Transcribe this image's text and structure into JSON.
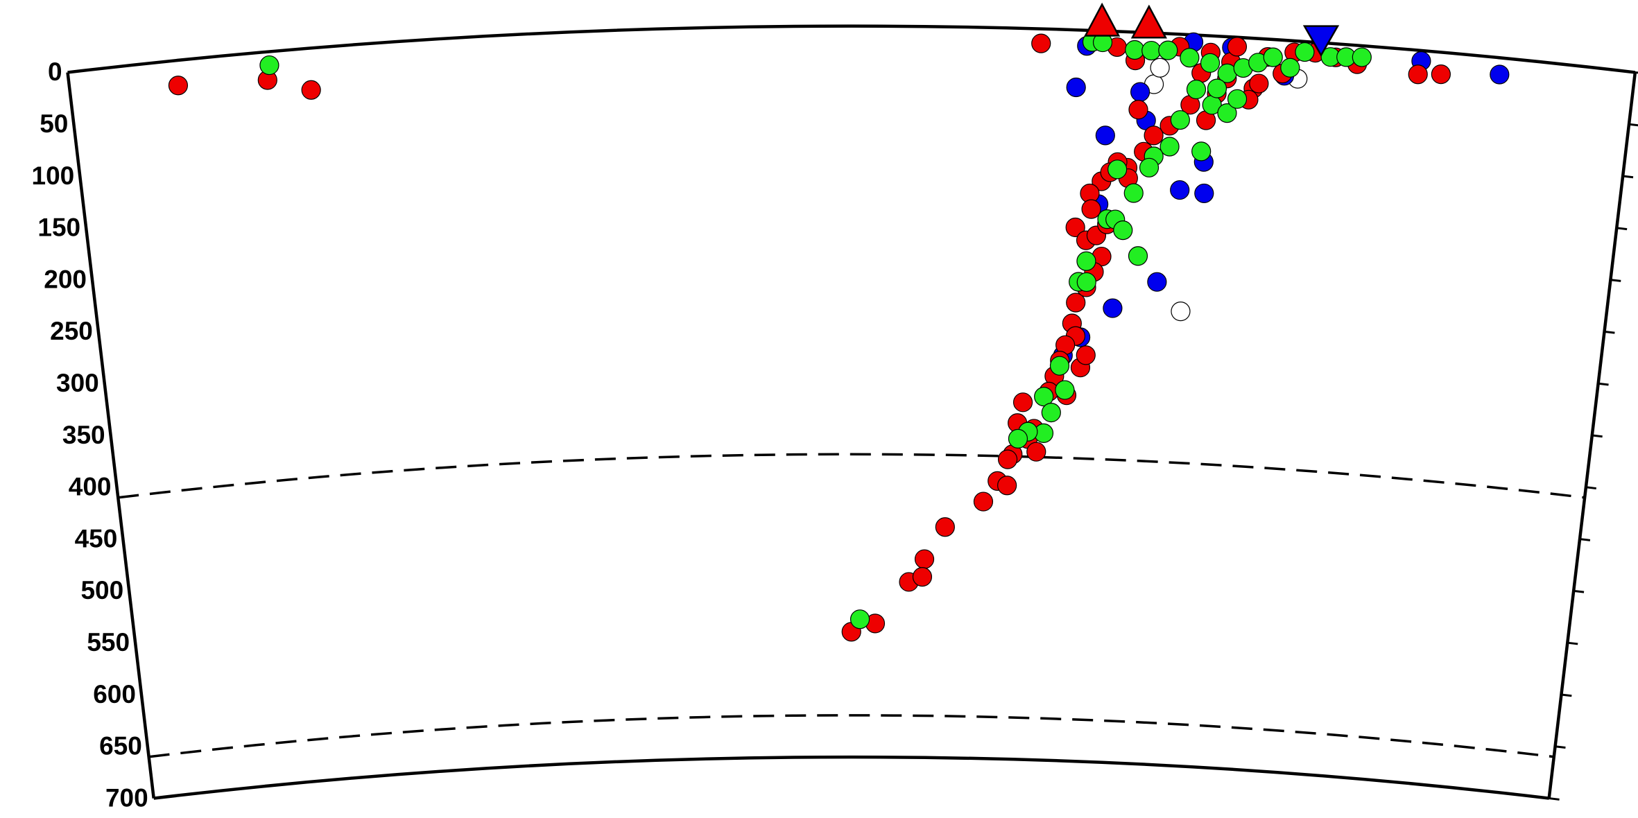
{
  "chart_data": {
    "type": "section",
    "ylim": [
      0,
      700
    ],
    "yticks": [
      0,
      50,
      100,
      150,
      200,
      250,
      300,
      350,
      400,
      450,
      500,
      550,
      600,
      650,
      700
    ],
    "y_inverted": true,
    "xlim": [
      -752,
      752
    ],
    "discontinuities": [
      410,
      660
    ],
    "series": [
      {
        "color": "#ffffff",
        "x": [
          329,
          430,
          292,
          297
        ],
        "values": [
          265,
          36,
          49,
          33
        ]
      },
      {
        "color": "#0000ee",
        "x": [
          547,
          623,
          217,
          247,
          279,
          346,
          322,
          304,
          261,
          344,
          226,
          328,
          365,
          417,
          286,
          230,
          213,
          243
        ],
        "values": [
          10,
          16,
          55,
          100,
          57,
          151,
          149,
          238,
          265,
          121,
          15,
          7,
          10,
          34,
          84,
          294,
          312,
          166
        ]
      },
      {
        "color": "#ee0000",
        "x": [
          -648,
          -562,
          -521,
          182,
          545,
          567,
          486,
          255,
          273,
          315,
          345,
          365,
          388,
          400,
          425,
          445,
          362,
          337,
          344,
          328,
          309,
          294,
          285,
          270,
          278,
          260,
          245,
          253,
          271,
          234,
          221,
          236,
          232,
          242,
          252,
          248,
          241,
          224,
          234,
          221,
          225,
          215,
          210,
          231,
          205,
          200,
          218,
          236,
          174,
          169,
          186,
          180,
          165,
          189,
          160,
          150,
          160,
          136,
          97,
          76,
          60,
          74,
          25,
          0,
          370,
          393,
          415,
          465,
          384,
          353
        ],
        "values": [
          24,
          27,
          40,
          14,
          23,
          21,
          18,
          15,
          27,
          12,
          16,
          24,
          48,
          17,
          11,
          10,
          40,
          36,
          81,
          67,
          88,
          98,
          114,
          130,
          74,
          125,
          144,
          135,
          140,
          156,
          189,
          171,
          201,
          196,
          185,
          216,
          231,
          261,
          246,
          281,
          293,
          302,
          317,
          323,
          332,
          347,
          350,
          311,
          358,
          378,
          383,
          393,
          408,
          405,
          413,
          434,
          438,
          454,
          479,
          510,
          532,
          527,
          572,
          580,
          9,
          43,
          32,
          13,
          59,
          55
        ]
      },
      {
        "color": "#22ee22",
        "x": [
          -559,
          231,
          241,
          272,
          288,
          304,
          325,
          345,
          362,
          377,
          391,
          405,
          422,
          435,
          460,
          475,
          490,
          333,
          349,
          364,
          319,
          341,
          310,
          295,
          291,
          277,
          260,
          252,
          260,
          268,
          284,
          233,
          226,
          234,
          210,
          195,
          216,
          203,
          196,
          180,
          170,
          9,
          353,
          373
        ],
        "values": [
          13,
          11,
          11,
          17,
          17,
          16,
          22,
          26,
          35,
          29,
          23,
          17,
          26,
          10,
          13,
          12,
          11,
          52,
          66,
          73,
          82,
          111,
          108,
          118,
          129,
          154,
          132,
          180,
          180,
          190,
          214,
          221,
          241,
          241,
          322,
          352,
          345,
          367,
          387,
          386,
          393,
          568,
          50,
          59
        ]
      }
    ],
    "volcanoes": {
      "color": "#ee0000",
      "x": [
        240,
        285
      ]
    },
    "trench": {
      "color": "#0000ee",
      "x": [
        450
      ]
    }
  }
}
